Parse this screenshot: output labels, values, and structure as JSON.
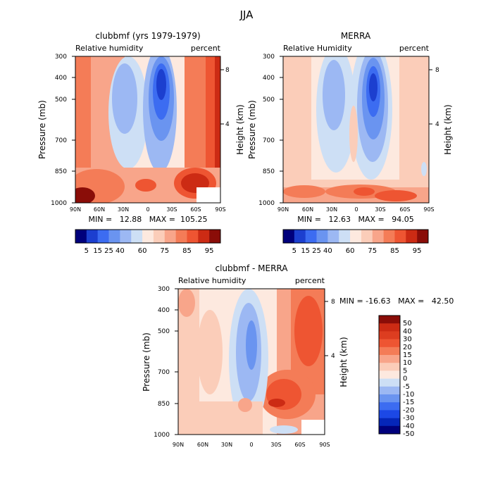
{
  "figure": {
    "title": "JJA"
  },
  "colors": {
    "abs_palette": [
      "#00007c",
      "#1c3fcf",
      "#3c6cf1",
      "#6a94f0",
      "#9cb8f3",
      "#cddff5",
      "#fde9df",
      "#fbcdb9",
      "#f8a58a",
      "#f47c57",
      "#ee5532",
      "#cc2b14",
      "#8a0d08"
    ],
    "diff_palette": [
      "#00007c",
      "#0526b9",
      "#1c48e6",
      "#3c6cf1",
      "#6a94f0",
      "#9cb8f3",
      "#cddff5",
      "#fde9df",
      "#fbcdb9",
      "#f8a58a",
      "#f47c57",
      "#ee5532",
      "#dd3d20",
      "#cc2b14",
      "#8a0d08"
    ]
  },
  "chart_data": [
    {
      "type": "heatmap",
      "title": "clubbmf (yrs 1979-1979)",
      "left_label": "Relative humidity",
      "right_label": "percent",
      "ylabel": "Pressure (mb)",
      "y2label": "Height (km)",
      "x_ticks": [
        "90N",
        "60N",
        "30N",
        "0",
        "30S",
        "60S",
        "90S"
      ],
      "y_ticks": [
        "300",
        "400",
        "500",
        "700",
        "850",
        "1000"
      ],
      "y2_ticks": [
        "8",
        "4"
      ],
      "stats_text": "MIN =   12.88   MAX =  105.25",
      "colorbar_ticks": [
        "5",
        "15",
        "25",
        "40",
        "60",
        "75",
        "85",
        "95"
      ]
    },
    {
      "type": "heatmap",
      "title": "MERRA",
      "left_label": "Relative Humidity",
      "right_label": "percent",
      "ylabel": "Pressure (mb)",
      "y2label": "Height (km)",
      "x_ticks": [
        "90N",
        "60N",
        "30N",
        "0",
        "30S",
        "60S",
        "90S"
      ],
      "y_ticks": [
        "300",
        "400",
        "500",
        "700",
        "850",
        "1000"
      ],
      "y2_ticks": [
        "8",
        "4"
      ],
      "stats_text": "MIN =   12.63   MAX =   94.05",
      "colorbar_ticks": [
        "5",
        "15",
        "25",
        "40",
        "60",
        "75",
        "85",
        "95"
      ]
    },
    {
      "type": "heatmap",
      "title": "clubbmf - MERRA",
      "left_label": "Relative humidity",
      "right_label": "percent",
      "ylabel": "Pressure (mb)",
      "y2label": "Height (km)",
      "x_ticks": [
        "90N",
        "60N",
        "30N",
        "0",
        "30S",
        "60S",
        "90S"
      ],
      "y_ticks": [
        "300",
        "400",
        "500",
        "700",
        "850",
        "1000"
      ],
      "y2_ticks": [
        "8",
        "4"
      ],
      "stats_text": "MIN = -16.63   MAX =   42.50",
      "colorbar_ticks": [
        "50",
        "40",
        "30",
        "20",
        "15",
        "10",
        "5",
        "0",
        "-5",
        "-10",
        "-15",
        "-20",
        "-30",
        "-40",
        "-50"
      ]
    }
  ]
}
